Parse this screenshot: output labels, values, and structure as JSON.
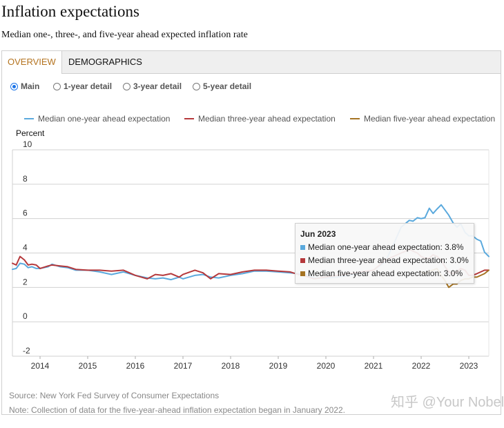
{
  "header": {
    "title": "Inflation expectations",
    "subtitle": "Median one-, three-, and five-year ahead expected inflation rate"
  },
  "tabs": [
    {
      "label": "OVERVIEW",
      "active": true
    },
    {
      "label": "DEMOGRAPHICS",
      "active": false
    }
  ],
  "views": [
    {
      "label": "Main",
      "selected": true
    },
    {
      "label": "1-year detail",
      "selected": false
    },
    {
      "label": "3-year detail",
      "selected": false
    },
    {
      "label": "5-year detail",
      "selected": false
    }
  ],
  "legend": [
    {
      "label": "Median one-year ahead expectation",
      "color": "#5aa9dd"
    },
    {
      "label": "Median three-year ahead expectation",
      "color": "#b5383b"
    },
    {
      "label": "Median five-year ahead expectation",
      "color": "#a57322"
    }
  ],
  "tooltip": {
    "title": "Jun 2023",
    "rows": [
      {
        "text": "Median one-year ahead expectation: 3.8%",
        "color": "#5aa9dd"
      },
      {
        "text": "Median three-year ahead expectation: 3.0%",
        "color": "#b5383b"
      },
      {
        "text": "Median five-year ahead expectation: 3.0%",
        "color": "#a57322"
      }
    ]
  },
  "footer": {
    "source": "Source: New York Fed Survey of Consumer Expectations",
    "note": "Note: Collection of data for the five-year-ahead inflation expectation began in January 2022."
  },
  "watermark": "知乎 @Your Nobel",
  "chart_data": {
    "type": "line",
    "ylabel": "Percent",
    "ylim": [
      -2,
      10
    ],
    "yticks": [
      -2,
      0,
      2,
      4,
      6,
      8,
      10
    ],
    "xlim": [
      2013.42,
      2023.42
    ],
    "xticks": [
      "2014",
      "2015",
      "2016",
      "2017",
      "2018",
      "2019",
      "2020",
      "2021",
      "2022",
      "2023"
    ],
    "grid": true,
    "series": [
      {
        "name": "Median one-year ahead expectation",
        "color": "#5aa9dd",
        "points": [
          [
            2013.42,
            3.05
          ],
          [
            2013.5,
            3.1
          ],
          [
            2013.58,
            3.4
          ],
          [
            2013.67,
            3.35
          ],
          [
            2013.75,
            3.15
          ],
          [
            2013.83,
            3.2
          ],
          [
            2013.92,
            3.1
          ],
          [
            2014.0,
            3.1
          ],
          [
            2014.17,
            3.2
          ],
          [
            2014.25,
            3.35
          ],
          [
            2014.42,
            3.2
          ],
          [
            2014.58,
            3.15
          ],
          [
            2014.75,
            3.0
          ],
          [
            2015.0,
            3.0
          ],
          [
            2015.25,
            2.9
          ],
          [
            2015.5,
            2.75
          ],
          [
            2015.75,
            2.9
          ],
          [
            2016.0,
            2.7
          ],
          [
            2016.25,
            2.55
          ],
          [
            2016.42,
            2.5
          ],
          [
            2016.58,
            2.55
          ],
          [
            2016.75,
            2.45
          ],
          [
            2016.92,
            2.6
          ],
          [
            2017.0,
            2.5
          ],
          [
            2017.25,
            2.7
          ],
          [
            2017.42,
            2.75
          ],
          [
            2017.58,
            2.6
          ],
          [
            2017.75,
            2.55
          ],
          [
            2018.0,
            2.7
          ],
          [
            2018.25,
            2.8
          ],
          [
            2018.5,
            2.95
          ],
          [
            2018.75,
            2.95
          ],
          [
            2019.0,
            2.9
          ],
          [
            2019.25,
            2.85
          ],
          [
            2019.42,
            2.8
          ],
          [
            2019.58,
            2.75
          ],
          [
            2019.75,
            2.55
          ],
          [
            2020.0,
            2.55
          ],
          [
            2020.25,
            2.6
          ],
          [
            2020.5,
            2.7
          ],
          [
            2020.75,
            2.85
          ],
          [
            2021.0,
            3.0
          ],
          [
            2021.25,
            3.5
          ],
          [
            2021.42,
            4.5
          ],
          [
            2021.58,
            5.5
          ],
          [
            2021.75,
            5.9
          ],
          [
            2021.83,
            5.85
          ],
          [
            2021.92,
            6.05
          ],
          [
            2022.0,
            6.0
          ],
          [
            2022.08,
            6.05
          ],
          [
            2022.17,
            6.6
          ],
          [
            2022.25,
            6.3
          ],
          [
            2022.33,
            6.55
          ],
          [
            2022.42,
            6.8
          ],
          [
            2022.5,
            6.5
          ],
          [
            2022.58,
            6.2
          ],
          [
            2022.67,
            5.75
          ],
          [
            2022.75,
            5.5
          ],
          [
            2022.83,
            5.7
          ],
          [
            2022.92,
            5.2
          ],
          [
            2023.0,
            5.0
          ],
          [
            2023.08,
            5.0
          ],
          [
            2023.17,
            4.8
          ],
          [
            2023.25,
            4.7
          ],
          [
            2023.33,
            4.05
          ],
          [
            2023.42,
            3.8
          ]
        ]
      },
      {
        "name": "Median three-year ahead expectation",
        "color": "#b5383b",
        "points": [
          [
            2013.42,
            3.4
          ],
          [
            2013.5,
            3.3
          ],
          [
            2013.58,
            3.8
          ],
          [
            2013.67,
            3.6
          ],
          [
            2013.75,
            3.3
          ],
          [
            2013.83,
            3.35
          ],
          [
            2013.92,
            3.3
          ],
          [
            2014.0,
            3.1
          ],
          [
            2014.17,
            3.25
          ],
          [
            2014.25,
            3.3
          ],
          [
            2014.42,
            3.25
          ],
          [
            2014.58,
            3.2
          ],
          [
            2014.75,
            3.05
          ],
          [
            2015.0,
            3.0
          ],
          [
            2015.25,
            3.0
          ],
          [
            2015.5,
            2.95
          ],
          [
            2015.75,
            3.0
          ],
          [
            2016.0,
            2.7
          ],
          [
            2016.25,
            2.5
          ],
          [
            2016.42,
            2.75
          ],
          [
            2016.58,
            2.7
          ],
          [
            2016.75,
            2.8
          ],
          [
            2016.92,
            2.6
          ],
          [
            2017.0,
            2.75
          ],
          [
            2017.25,
            3.0
          ],
          [
            2017.42,
            2.85
          ],
          [
            2017.58,
            2.5
          ],
          [
            2017.75,
            2.8
          ],
          [
            2018.0,
            2.75
          ],
          [
            2018.25,
            2.9
          ],
          [
            2018.5,
            3.0
          ],
          [
            2018.75,
            3.0
          ],
          [
            2019.0,
            2.95
          ],
          [
            2019.25,
            2.9
          ],
          [
            2019.42,
            2.75
          ],
          [
            2019.58,
            2.65
          ],
          [
            2019.75,
            2.5
          ],
          [
            2020.0,
            2.6
          ],
          [
            2020.25,
            2.7
          ],
          [
            2020.5,
            2.8
          ],
          [
            2020.75,
            2.9
          ],
          [
            2021.0,
            3.0
          ],
          [
            2021.25,
            3.6
          ],
          [
            2021.42,
            3.8
          ],
          [
            2021.58,
            4.0
          ],
          [
            2021.75,
            4.2
          ],
          [
            2021.92,
            4.0
          ],
          [
            2022.0,
            3.8
          ],
          [
            2022.08,
            3.7
          ],
          [
            2022.17,
            3.7
          ],
          [
            2022.25,
            3.9
          ],
          [
            2022.33,
            3.8
          ],
          [
            2022.42,
            3.6
          ],
          [
            2022.5,
            3.2
          ],
          [
            2022.58,
            2.9
          ],
          [
            2022.67,
            2.8
          ],
          [
            2022.75,
            2.9
          ],
          [
            2022.83,
            3.1
          ],
          [
            2022.92,
            3.0
          ],
          [
            2023.0,
            2.7
          ],
          [
            2023.08,
            2.7
          ],
          [
            2023.17,
            2.8
          ],
          [
            2023.25,
            2.9
          ],
          [
            2023.33,
            3.0
          ],
          [
            2023.42,
            3.0
          ]
        ]
      },
      {
        "name": "Median five-year ahead expectation",
        "color": "#a57322",
        "points": [
          [
            2022.0,
            2.9
          ],
          [
            2022.08,
            2.8
          ],
          [
            2022.17,
            2.95
          ],
          [
            2022.25,
            3.0
          ],
          [
            2022.33,
            3.1
          ],
          [
            2022.42,
            2.7
          ],
          [
            2022.5,
            2.4
          ],
          [
            2022.58,
            2.0
          ],
          [
            2022.67,
            2.2
          ],
          [
            2022.75,
            2.2
          ],
          [
            2022.83,
            2.4
          ],
          [
            2022.92,
            2.5
          ],
          [
            2023.0,
            2.5
          ],
          [
            2023.08,
            2.6
          ],
          [
            2023.17,
            2.6
          ],
          [
            2023.25,
            2.7
          ],
          [
            2023.33,
            2.8
          ],
          [
            2023.42,
            3.0
          ]
        ]
      }
    ]
  }
}
